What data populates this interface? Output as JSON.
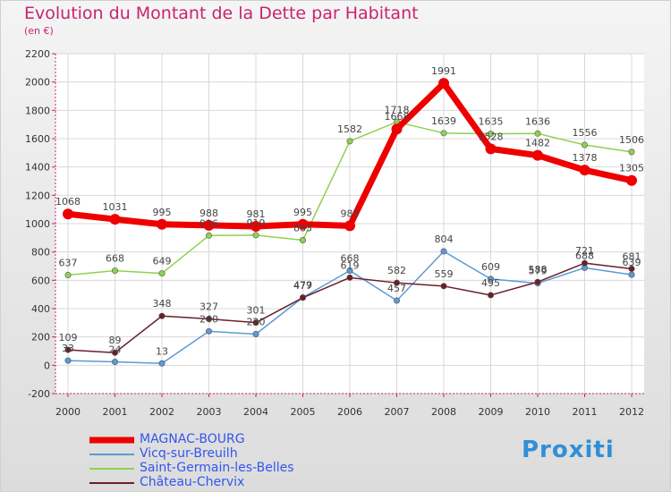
{
  "header": {
    "title": "Evolution du Montant de la Dette par Habitant",
    "subtitle": "(en €)"
  },
  "logo": {
    "text": "Proxiti"
  },
  "chart_data": {
    "type": "line",
    "x": [
      "2000",
      "2001",
      "2002",
      "2003",
      "2004",
      "2005",
      "2006",
      "2007",
      "2008",
      "2009",
      "2010",
      "2011",
      "2012"
    ],
    "ylim": [
      -200,
      2200
    ],
    "yticks": [
      -200,
      0,
      200,
      400,
      600,
      800,
      1000,
      1200,
      1400,
      1600,
      1800,
      2000,
      2200
    ],
    "grid": true,
    "legend_placement": "bottom-left",
    "series": [
      {
        "name": "MAGNAC-BOURG",
        "color": "#ee0000",
        "values": [
          1068,
          1031,
          995,
          988,
          981,
          995,
          985,
          1668,
          1991,
          1528,
          1482,
          1378,
          1305
        ],
        "labels": [
          "1068",
          "1031",
          "995",
          "988",
          "981",
          "995",
          "985",
          "1668",
          "1991",
          "1528",
          "1482",
          "1378",
          "1305"
        ]
      },
      {
        "name": "Vicq-sur-Breuilh",
        "color": "#5a9bd5",
        "values": [
          33,
          24,
          13,
          240,
          220,
          479,
          668,
          457,
          804,
          609,
          579,
          688,
          639
        ],
        "labels": [
          "33",
          "24",
          "13",
          "240",
          "220",
          "479",
          "668",
          "457",
          "804",
          "609",
          "579",
          "688",
          "639"
        ]
      },
      {
        "name": "Saint-Germain-les-Belles",
        "color": "#8fd14f",
        "values": [
          637,
          668,
          649,
          916,
          919,
          883,
          1582,
          1718,
          1639,
          1635,
          1636,
          1556,
          1506
        ],
        "labels": [
          "637",
          "668",
          "649",
          "916",
          "919",
          "883",
          "1582",
          "1718",
          "1639",
          "1635",
          "1636",
          "1556",
          "1506"
        ]
      },
      {
        "name": "Château-Chervix",
        "color": "#6b1e2a",
        "values": [
          109,
          89,
          348,
          327,
          301,
          477,
          619,
          582,
          559,
          495,
          588,
          721,
          681
        ],
        "labels": [
          "109",
          "89",
          "348",
          "327",
          "301",
          "477",
          "619",
          "582",
          "559",
          "495",
          "588",
          "721",
          "681"
        ]
      }
    ]
  }
}
